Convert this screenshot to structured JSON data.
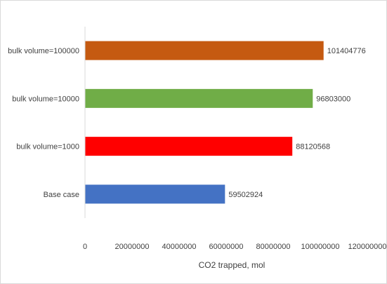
{
  "chart_data": {
    "type": "bar",
    "orientation": "horizontal",
    "categories": [
      "Base case",
      "bulk volume=1000",
      "bulk volume=10000",
      "bulk volume=100000"
    ],
    "values": [
      59502924,
      88120568,
      96803000,
      101404776
    ],
    "data_labels": [
      "59502924",
      "88120568",
      "96803000",
      "101404776"
    ],
    "colors": [
      "#4472c4",
      "#ff0000",
      "#70ad47",
      "#c55a11"
    ],
    "xlabel": "CO2 trapped, mol",
    "ylabel": "",
    "xlim": [
      0,
      120000000
    ],
    "xticks": [
      0,
      20000000,
      40000000,
      60000000,
      80000000,
      100000000,
      120000000
    ],
    "xtick_labels": [
      "0",
      "20000000",
      "40000000",
      "60000000",
      "80000000",
      "100000000",
      "120000000"
    ],
    "grid": false,
    "legend": "none"
  }
}
